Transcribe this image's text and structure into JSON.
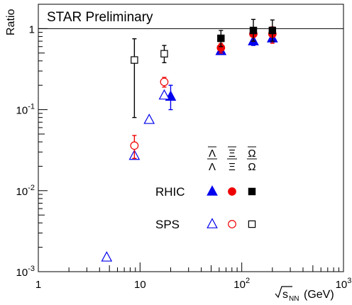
{
  "chart_data": {
    "type": "scatter",
    "title": "STAR Preliminary",
    "ylabel": "Ratio",
    "xlabel": "√s_NN (GeV)",
    "xlabel_main": "s",
    "xlabel_sub": "NN",
    "xlabel_unit": "(GeV)",
    "xscale": "log",
    "yscale": "log",
    "xlim": [
      1,
      1000
    ],
    "ylim": [
      0.001,
      2
    ],
    "reference_line": 1,
    "x_ticks": [
      {
        "value": 1,
        "base": "1",
        "exp": ""
      },
      {
        "value": 10,
        "base": "10",
        "exp": ""
      },
      {
        "value": 100,
        "base": "10",
        "exp": "2"
      },
      {
        "value": 1000,
        "base": "10",
        "exp": "3"
      }
    ],
    "y_ticks": [
      {
        "value": 1,
        "base": "1",
        "exp": ""
      },
      {
        "value": 0.1,
        "base": "10",
        "exp": "-1"
      },
      {
        "value": 0.01,
        "base": "10",
        "exp": "-2"
      },
      {
        "value": 0.001,
        "base": "10",
        "exp": "-3"
      }
    ],
    "legend_columns": [
      "Λ̄/Λ",
      "Ξ̄/Ξ",
      "Ω̄/Ω"
    ],
    "legend_rows": [
      "RHIC",
      "SPS"
    ],
    "series": [
      {
        "name": "Λ̄/Λ RHIC",
        "marker": "triangle",
        "filled": true,
        "color": "#0000ee",
        "points": [
          {
            "x": 20,
            "y": 0.145,
            "lo": 0.1,
            "hi": 0.2
          },
          {
            "x": 62.4,
            "y": 0.53
          },
          {
            "x": 130,
            "y": 0.7,
            "lo": 0.62,
            "hi": 0.8
          },
          {
            "x": 200,
            "y": 0.76,
            "lo": 0.68,
            "hi": 0.85
          }
        ]
      },
      {
        "name": "Ξ̄/Ξ RHIC",
        "marker": "circle",
        "filled": true,
        "color": "#ee0000",
        "points": [
          {
            "x": 62.4,
            "y": 0.58,
            "lo": 0.5,
            "hi": 0.66
          },
          {
            "x": 130,
            "y": 0.86,
            "lo": 0.7,
            "hi": 1.0
          },
          {
            "x": 200,
            "y": 0.86,
            "lo": 0.66,
            "hi": 1.05
          }
        ]
      },
      {
        "name": "Ω̄/Ω RHIC",
        "marker": "square",
        "filled": true,
        "color": "#000000",
        "points": [
          {
            "x": 62.4,
            "y": 0.76,
            "lo": 0.6,
            "hi": 0.95
          },
          {
            "x": 130,
            "y": 0.95,
            "lo": 0.7,
            "hi": 1.3
          },
          {
            "x": 200,
            "y": 0.95,
            "lo": 0.7,
            "hi": 1.28
          }
        ]
      },
      {
        "name": "Λ̄/Λ SPS",
        "marker": "triangle",
        "filled": false,
        "color": "#0000ee",
        "points": [
          {
            "x": 4.7,
            "y": 0.0015
          },
          {
            "x": 8.8,
            "y": 0.027
          },
          {
            "x": 12.3,
            "y": 0.075
          },
          {
            "x": 17.3,
            "y": 0.15
          }
        ]
      },
      {
        "name": "Ξ̄/Ξ SPS",
        "marker": "circle",
        "filled": false,
        "color": "#ee0000",
        "points": [
          {
            "x": 8.8,
            "y": 0.036,
            "lo": 0.025,
            "hi": 0.048
          },
          {
            "x": 17.3,
            "y": 0.22,
            "lo": 0.19,
            "hi": 0.25
          }
        ]
      },
      {
        "name": "Ω̄/Ω SPS",
        "marker": "square",
        "filled": false,
        "color": "#000000",
        "points": [
          {
            "x": 8.8,
            "y": 0.41,
            "lo": 0.08,
            "hi": 0.75
          },
          {
            "x": 17.3,
            "y": 0.49,
            "lo": 0.38,
            "hi": 0.62
          }
        ]
      }
    ]
  }
}
